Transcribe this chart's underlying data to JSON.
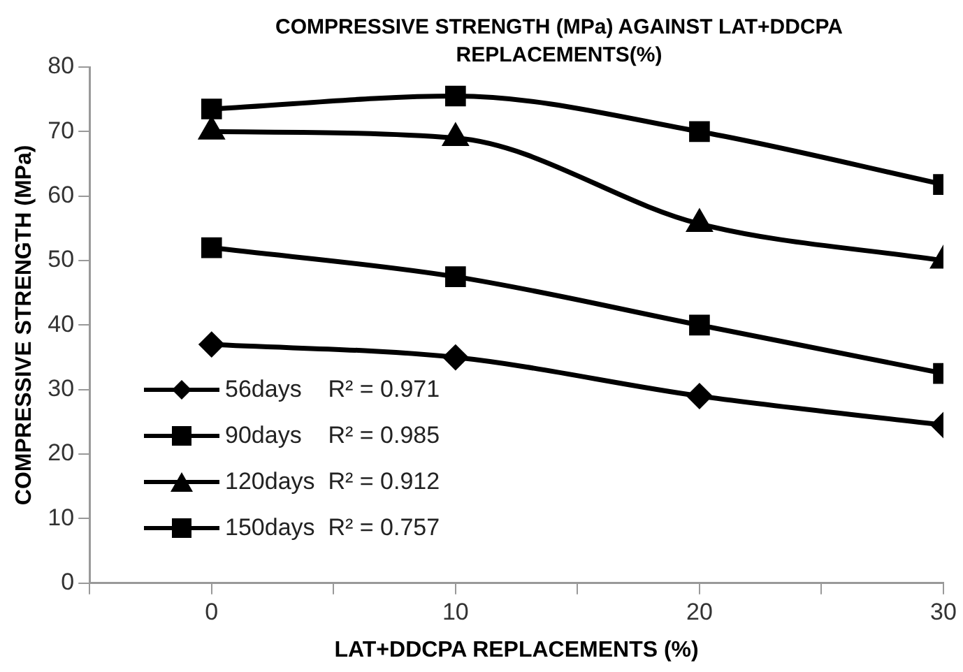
{
  "chart_data": {
    "type": "line",
    "title": "COMPRESSIVE STRENGTH (MPa) AGAINST LAT+DDCPA REPLACEMENTS(%)",
    "xlabel": "LAT+DDCPA REPLACEMENTS (%)",
    "ylabel": "COMPRESSIVE STRENGTH (MPa)",
    "x": [
      0,
      10,
      20,
      30
    ],
    "xlim": [
      -5,
      30
    ],
    "xticks": [
      {
        "value": -5,
        "label": null
      },
      0,
      {
        "value": 5,
        "label": null
      },
      10,
      {
        "value": 15,
        "label": null
      },
      20,
      {
        "value": 25,
        "label": null
      },
      30
    ],
    "ylim": [
      0,
      80
    ],
    "yticks": [
      0,
      10,
      20,
      30,
      40,
      50,
      60,
      70,
      80
    ],
    "grid": false,
    "legend": "bottom left",
    "line_style": "solid",
    "series": [
      {
        "name": "56days    R² = 0.971",
        "color": "#000000",
        "marker": "diamond",
        "values": [
          37,
          35,
          29,
          24.5
        ]
      },
      {
        "name": "90days    R² = 0.985",
        "color": "#000000",
        "marker": "square",
        "values": [
          52,
          47.5,
          40,
          32.5
        ]
      },
      {
        "name": "120days  R² = 0.912",
        "color": "#000000",
        "marker": "triangle",
        "values": [
          70,
          69,
          55.7,
          50
        ]
      },
      {
        "name": "150days  R² = 0.757",
        "color": "#000000",
        "marker": "square",
        "values": [
          73.5,
          75.5,
          70,
          61.8
        ]
      }
    ]
  }
}
